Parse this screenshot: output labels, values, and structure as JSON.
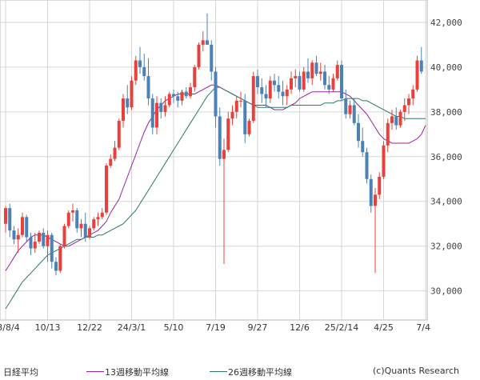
{
  "chart_data": {
    "type": "candlestick",
    "title": "日経平均",
    "y_ticks": [
      30000,
      32000,
      34000,
      36000,
      38000,
      40000,
      42000
    ],
    "y_tick_labels": [
      "30,000",
      "32,000",
      "34,000",
      "36,000",
      "38,000",
      "40,000",
      "42,000"
    ],
    "ylim": [
      28700,
      43000
    ],
    "x_tick_labels": [
      "23/8/4",
      "10/13",
      "12/22",
      "24/3/1",
      "5/10",
      "7/19",
      "9/27",
      "12/6",
      "25/2/14",
      "4/25",
      "7/4"
    ],
    "x_tick_indices": [
      0,
      10,
      20,
      30,
      40,
      50,
      60,
      70,
      80,
      90,
      100
    ],
    "grid": true,
    "candles": [
      [
        33000,
        33800,
        32600,
        33700
      ],
      [
        33700,
        33900,
        32400,
        32700
      ],
      [
        32700,
        32900,
        32100,
        32300
      ],
      [
        32300,
        32800,
        31700,
        32500
      ],
      [
        32500,
        33500,
        32400,
        33300
      ],
      [
        33300,
        33400,
        32200,
        32400
      ],
      [
        32400,
        32600,
        31600,
        31900
      ],
      [
        31900,
        32600,
        31700,
        32200
      ],
      [
        32200,
        32700,
        32100,
        32600
      ],
      [
        32600,
        32800,
        31900,
        32000
      ],
      [
        32000,
        32700,
        31300,
        32500
      ],
      [
        32500,
        32600,
        31000,
        31300
      ],
      [
        31300,
        31500,
        30700,
        30900
      ],
      [
        30900,
        32100,
        30800,
        32000
      ],
      [
        32000,
        33000,
        31900,
        32900
      ],
      [
        32900,
        33600,
        32800,
        33500
      ],
      [
        33500,
        33900,
        33100,
        33600
      ],
      [
        33600,
        33700,
        32600,
        32800
      ],
      [
        32800,
        33200,
        32400,
        33000
      ],
      [
        33000,
        33500,
        32200,
        32400
      ],
      [
        32400,
        32900,
        32300,
        32800
      ],
      [
        32800,
        33300,
        32700,
        33200
      ],
      [
        33200,
        33500,
        32900,
        33300
      ],
      [
        33300,
        33700,
        33200,
        33500
      ],
      [
        33500,
        35700,
        33400,
        35600
      ],
      [
        35600,
        36100,
        35500,
        35900
      ],
      [
        35900,
        36700,
        35800,
        36400
      ],
      [
        36400,
        37700,
        36300,
        37600
      ],
      [
        37600,
        38800,
        37300,
        38600
      ],
      [
        38600,
        39200,
        37900,
        38200
      ],
      [
        38200,
        39600,
        38100,
        39400
      ],
      [
        39400,
        40500,
        39200,
        40300
      ],
      [
        40300,
        40900,
        39700,
        40000
      ],
      [
        40000,
        40600,
        39400,
        39600
      ],
      [
        39600,
        40400,
        38300,
        38600
      ],
      [
        38600,
        38800,
        37000,
        37300
      ],
      [
        37300,
        38700,
        37000,
        38400
      ],
      [
        38400,
        38600,
        37700,
        38000
      ],
      [
        38000,
        38700,
        37800,
        38300
      ],
      [
        38300,
        38900,
        38200,
        38800
      ],
      [
        38800,
        39000,
        38400,
        38700
      ],
      [
        38700,
        38900,
        38200,
        38500
      ],
      [
        38500,
        39000,
        38300,
        38900
      ],
      [
        38900,
        39100,
        38600,
        38700
      ],
      [
        38700,
        39300,
        38600,
        39100
      ],
      [
        39100,
        40100,
        38900,
        40000
      ],
      [
        40000,
        41100,
        39900,
        41000
      ],
      [
        41000,
        41600,
        40700,
        41200
      ],
      [
        41200,
        42400,
        41000,
        41000
      ],
      [
        41000,
        41200,
        39400,
        39800
      ],
      [
        39800,
        40000,
        37300,
        37800
      ],
      [
        37800,
        38200,
        35600,
        35900
      ],
      [
        35900,
        36800,
        31200,
        36300
      ],
      [
        36300,
        38000,
        36200,
        37700
      ],
      [
        37700,
        38300,
        37400,
        38000
      ],
      [
        38000,
        38700,
        37700,
        38500
      ],
      [
        38500,
        38900,
        38200,
        38500
      ],
      [
        38500,
        38800,
        36600,
        37000
      ],
      [
        37000,
        37700,
        36900,
        37600
      ],
      [
        37600,
        39800,
        37500,
        39600
      ],
      [
        39600,
        39900,
        38800,
        39100
      ],
      [
        39100,
        39500,
        38400,
        38800
      ],
      [
        38800,
        39200,
        38200,
        38600
      ],
      [
        38600,
        39600,
        38400,
        39400
      ],
      [
        39400,
        39700,
        38900,
        39200
      ],
      [
        39200,
        39600,
        38600,
        38900
      ],
      [
        38900,
        39400,
        38300,
        38700
      ],
      [
        38700,
        39200,
        38300,
        39000
      ],
      [
        39000,
        39800,
        38800,
        39500
      ],
      [
        39500,
        39900,
        39100,
        39600
      ],
      [
        39600,
        39800,
        38900,
        39000
      ],
      [
        39000,
        40000,
        38900,
        39800
      ],
      [
        39800,
        40400,
        39300,
        39500
      ],
      [
        39500,
        40300,
        39200,
        40200
      ],
      [
        40200,
        40500,
        39600,
        39700
      ],
      [
        39700,
        40200,
        39400,
        39800
      ],
      [
        39800,
        40100,
        39000,
        39200
      ],
      [
        39200,
        39600,
        38800,
        39000
      ],
      [
        39000,
        39700,
        38900,
        39500
      ],
      [
        39500,
        40300,
        39400,
        40100
      ],
      [
        40100,
        40300,
        38500,
        38600
      ],
      [
        38600,
        39000,
        37700,
        37900
      ],
      [
        37900,
        38500,
        37700,
        38300
      ],
      [
        38300,
        38600,
        37400,
        37500
      ],
      [
        37500,
        37900,
        36400,
        36700
      ],
      [
        36700,
        37300,
        36000,
        36200
      ],
      [
        36200,
        36400,
        34800,
        35000
      ],
      [
        35000,
        35200,
        33500,
        33800
      ],
      [
        33800,
        34600,
        30800,
        34300
      ],
      [
        34300,
        35300,
        34100,
        35100
      ],
      [
        35100,
        36700,
        35000,
        36500
      ],
      [
        36500,
        37700,
        36200,
        37500
      ],
      [
        37500,
        38100,
        37200,
        37800
      ],
      [
        37800,
        38200,
        37200,
        37400
      ],
      [
        37400,
        38100,
        37300,
        38000
      ],
      [
        38000,
        38600,
        37600,
        38300
      ],
      [
        38300,
        38800,
        37900,
        38600
      ],
      [
        38600,
        39200,
        38300,
        39000
      ],
      [
        39000,
        40500,
        38900,
        40300
      ],
      [
        40300,
        40900,
        39700,
        39800
      ]
    ],
    "series": [
      {
        "name": "13週移動平均線",
        "color": "#9b1fa6",
        "values": [
          30900,
          31200,
          31500,
          31800,
          32000,
          32200,
          32400,
          32500,
          32500,
          32500,
          32400,
          32300,
          32200,
          32100,
          32000,
          32000,
          32100,
          32200,
          32300,
          32400,
          32500,
          32600,
          32700,
          32900,
          33100,
          33500,
          33800,
          34100,
          34600,
          35100,
          35600,
          36100,
          36600,
          37100,
          37500,
          37800,
          38100,
          38300,
          38500,
          38600,
          38700,
          38800,
          38800,
          38800,
          38800,
          38800,
          38900,
          39000,
          39100,
          39200,
          39200,
          39100,
          39000,
          38900,
          38800,
          38700,
          38600,
          38500,
          38400,
          38300,
          38300,
          38300,
          38300,
          38200,
          38100,
          38100,
          38100,
          38200,
          38300,
          38400,
          38600,
          38700,
          38800,
          38900,
          38900,
          38900,
          38900,
          38900,
          38900,
          38900,
          38900,
          38800,
          38700,
          38500,
          38300,
          38100,
          37900,
          37600,
          37300,
          37000,
          36800,
          36700,
          36600,
          36600,
          36600,
          36600,
          36600,
          36700,
          36800,
          37000,
          37400
        ]
      },
      {
        "name": "26週移動平均線",
        "color": "#2a7a6e",
        "values": [
          29200,
          29500,
          29800,
          30100,
          30400,
          30600,
          30800,
          31000,
          31200,
          31400,
          31600,
          31700,
          31800,
          31900,
          32000,
          32100,
          32200,
          32300,
          32300,
          32400,
          32400,
          32400,
          32500,
          32500,
          32600,
          32700,
          32800,
          32900,
          33000,
          33200,
          33400,
          33600,
          33900,
          34200,
          34500,
          34800,
          35100,
          35400,
          35700,
          36000,
          36300,
          36600,
          36900,
          37200,
          37500,
          37800,
          38100,
          38400,
          38700,
          38900,
          39100,
          39100,
          39000,
          38900,
          38800,
          38700,
          38600,
          38500,
          38400,
          38300,
          38200,
          38200,
          38200,
          38200,
          38200,
          38200,
          38200,
          38200,
          38300,
          38300,
          38300,
          38300,
          38300,
          38300,
          38300,
          38300,
          38400,
          38400,
          38400,
          38500,
          38500,
          38600,
          38600,
          38600,
          38600,
          38500,
          38500,
          38400,
          38300,
          38200,
          38100,
          38000,
          37900,
          37800,
          37800,
          37700,
          37700,
          37700,
          37700,
          37700,
          37700
        ]
      }
    ],
    "up_color": "#e8413c",
    "down_color": "#4a82b8",
    "source": "(c)Quants Research"
  }
}
